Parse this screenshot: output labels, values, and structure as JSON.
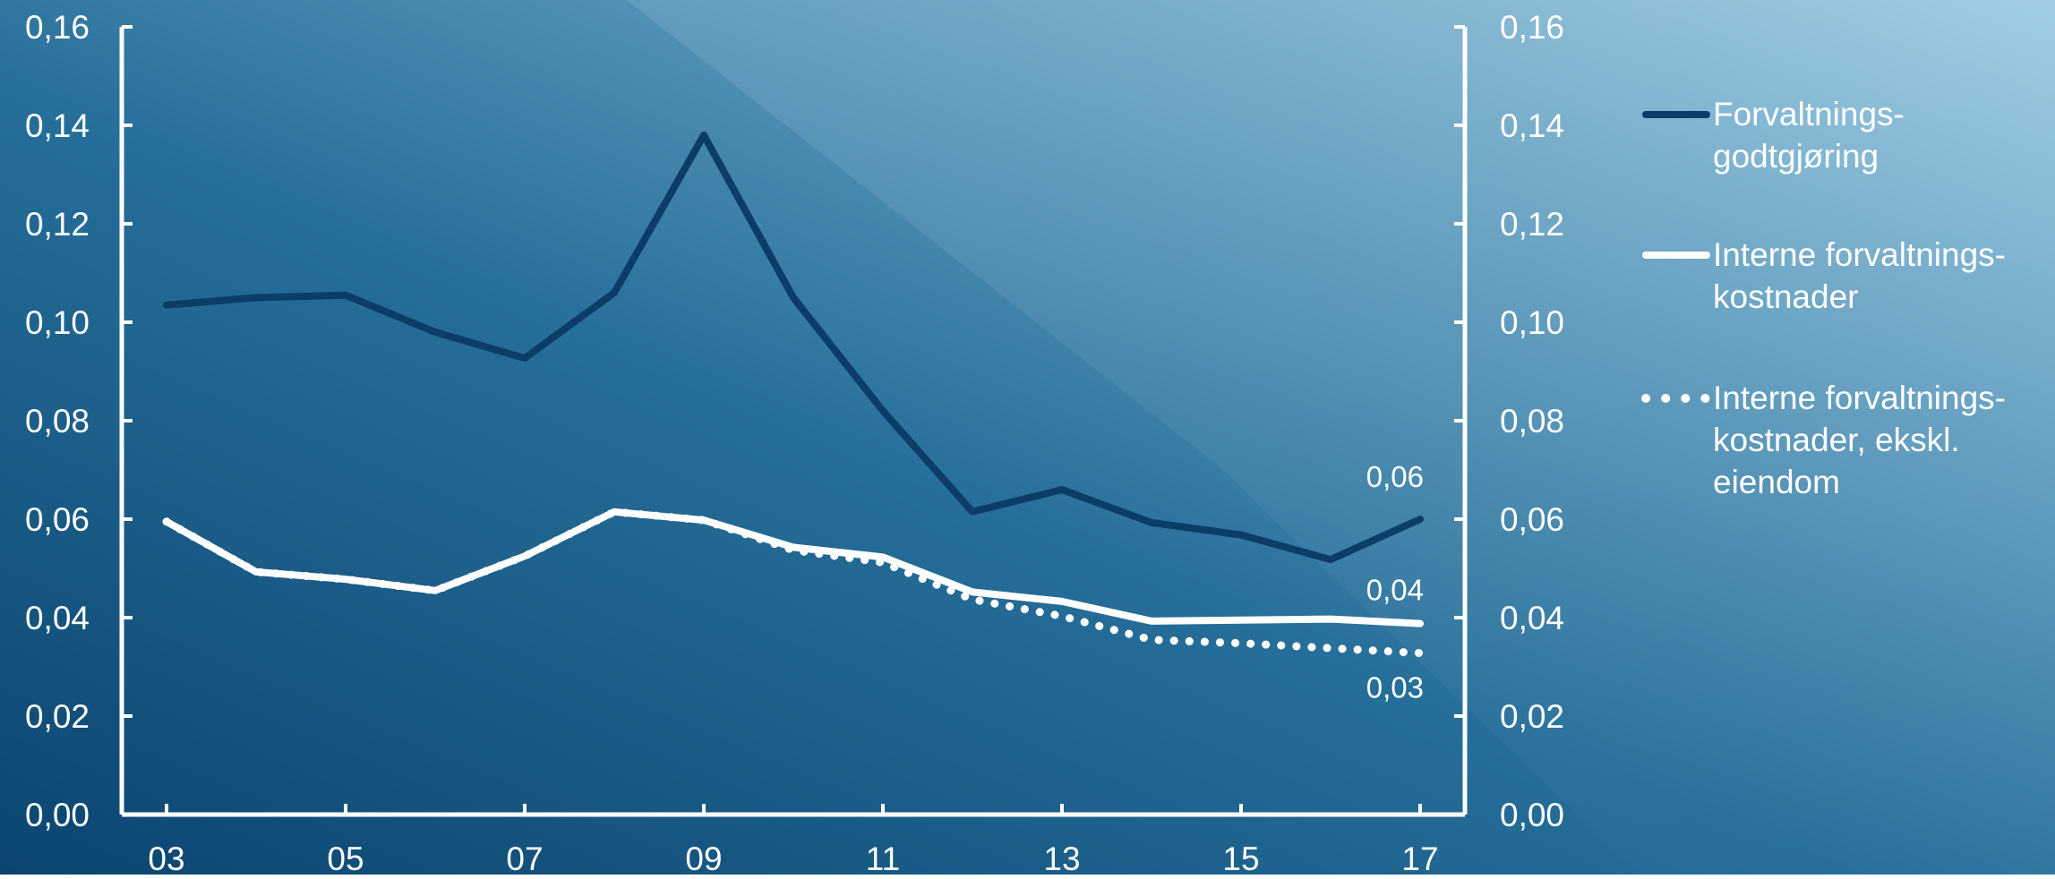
{
  "chart_data": {
    "type": "line",
    "x": [
      2003,
      2004,
      2005,
      2006,
      2007,
      2008,
      2009,
      2010,
      2011,
      2012,
      2013,
      2014,
      2015,
      2016,
      2017
    ],
    "x_ticks": [
      "03",
      "05",
      "07",
      "09",
      "11",
      "13",
      "15",
      "17"
    ],
    "x_tick_values": [
      2003,
      2005,
      2007,
      2009,
      2011,
      2013,
      2015,
      2017
    ],
    "xlim": [
      2002.5,
      2017.5
    ],
    "ylim": [
      0,
      0.16
    ],
    "y_ticks": [
      "0,00",
      "0,02",
      "0,04",
      "0,06",
      "0,08",
      "0,10",
      "0,12",
      "0,14",
      "0,16"
    ],
    "y_tick_values": [
      0,
      0.02,
      0.04,
      0.06,
      0.08,
      0.1,
      0.12,
      0.14,
      0.16
    ],
    "title": "",
    "xlabel": "",
    "ylabel": "",
    "legend_position": "right",
    "grid": false,
    "series": [
      {
        "name": "Forvaltnings-\ngodtgjøring",
        "style": "solid",
        "color": "#0c3c68",
        "values": [
          0.1035,
          0.105,
          0.1055,
          0.098,
          0.0927,
          0.106,
          0.138,
          0.105,
          0.082,
          0.0615,
          0.066,
          0.0593,
          0.0568,
          0.0518,
          0.06
        ],
        "end_label": "0,06"
      },
      {
        "name": "Interne forvaltnings-\nkostnader",
        "style": "solid",
        "color": "#ffffff",
        "values": [
          0.0595,
          0.0493,
          0.0478,
          0.0455,
          0.0525,
          0.0615,
          0.0598,
          0.0543,
          0.0523,
          0.0452,
          0.0433,
          0.0393,
          0.0395,
          0.0397,
          0.0388
        ],
        "end_label": "0,04"
      },
      {
        "name": "Interne forvaltnings-\nkostnader, ekskl.\neiendom",
        "style": "dotted",
        "color": "#ffffff",
        "values": [
          0.0595,
          0.0493,
          0.0478,
          0.0455,
          0.0525,
          0.0615,
          0.0598,
          0.0537,
          0.0512,
          0.0437,
          0.0403,
          0.0355,
          0.0348,
          0.0338,
          0.0328
        ],
        "end_label": "0,03"
      }
    ]
  }
}
